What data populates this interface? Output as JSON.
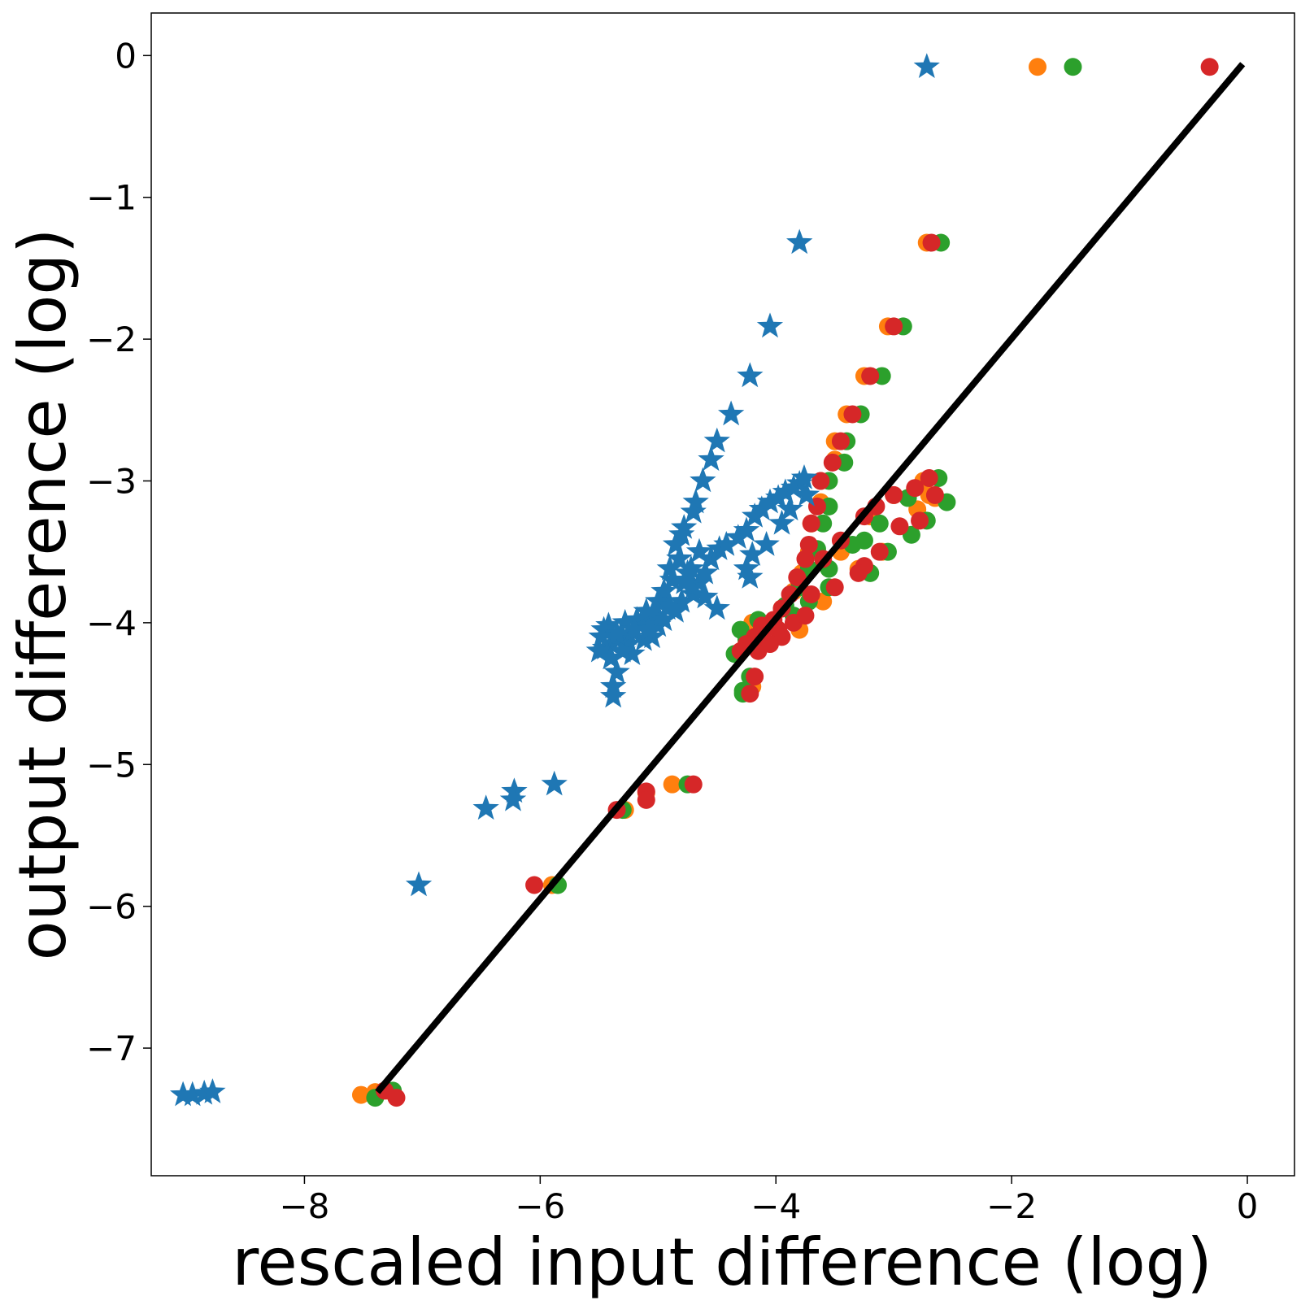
{
  "chart_data": {
    "type": "scatter",
    "title": "",
    "xlabel": "rescaled input difference (log)",
    "ylabel": "output difference (log)",
    "xlim": [
      -9.3,
      0.4
    ],
    "ylim": [
      -7.9,
      0.3
    ],
    "xticks": [
      -8,
      -6,
      -4,
      -2,
      0
    ],
    "yticks": [
      0,
      -1,
      -2,
      -3,
      -4,
      -5,
      -6,
      -7
    ],
    "xtick_labels": [
      "−8",
      "−6",
      "−4",
      "−2",
      "0"
    ],
    "ytick_labels": [
      "0",
      "−1",
      "−2",
      "−3",
      "−4",
      "−5",
      "−6",
      "−7"
    ],
    "grid": false,
    "line": {
      "name": "reference line",
      "color": "#000000",
      "x": [
        -7.38,
        -0.04
      ],
      "y": [
        -7.31,
        -0.06
      ]
    },
    "series": [
      {
        "name": "stars",
        "marker": "star",
        "color": "#1f77b4",
        "points": [
          [
            -2.72,
            -0.08
          ],
          [
            -3.8,
            -1.32
          ],
          [
            -4.05,
            -1.91
          ],
          [
            -4.22,
            -2.26
          ],
          [
            -4.38,
            -2.53
          ],
          [
            -4.5,
            -2.72
          ],
          [
            -4.55,
            -2.85
          ],
          [
            -4.62,
            -3.0
          ],
          [
            -4.68,
            -3.15
          ],
          [
            -4.7,
            -3.22
          ],
          [
            -4.78,
            -3.33
          ],
          [
            -4.8,
            -3.38
          ],
          [
            -4.85,
            -3.45
          ],
          [
            -4.82,
            -3.55
          ],
          [
            -4.9,
            -3.62
          ],
          [
            -4.88,
            -3.7
          ],
          [
            -4.95,
            -3.78
          ],
          [
            -5.0,
            -3.85
          ],
          [
            -4.92,
            -3.9
          ],
          [
            -5.05,
            -3.95
          ],
          [
            -5.1,
            -3.98
          ],
          [
            -5.15,
            -4.02
          ],
          [
            -5.2,
            -4.05
          ],
          [
            -5.25,
            -4.08
          ],
          [
            -5.3,
            -4.1
          ],
          [
            -5.35,
            -4.12
          ],
          [
            -5.4,
            -4.15
          ],
          [
            -5.45,
            -4.18
          ],
          [
            -5.5,
            -4.2
          ],
          [
            -5.4,
            -4.25
          ],
          [
            -5.35,
            -4.35
          ],
          [
            -5.38,
            -4.45
          ],
          [
            -5.38,
            -4.52
          ],
          [
            -5.42,
            -4.02
          ],
          [
            -5.28,
            -4.0
          ],
          [
            -5.18,
            -3.98
          ],
          [
            -5.1,
            -3.92
          ],
          [
            -5.0,
            -3.95
          ],
          [
            -4.9,
            -3.88
          ],
          [
            -4.8,
            -3.85
          ],
          [
            -4.7,
            -3.8
          ],
          [
            -4.65,
            -3.72
          ],
          [
            -4.6,
            -3.65
          ],
          [
            -4.55,
            -3.55
          ],
          [
            -4.48,
            -3.48
          ],
          [
            -4.42,
            -3.45
          ],
          [
            -4.32,
            -3.4
          ],
          [
            -4.25,
            -3.35
          ],
          [
            -4.18,
            -3.25
          ],
          [
            -4.12,
            -3.2
          ],
          [
            -4.05,
            -3.15
          ],
          [
            -3.98,
            -3.12
          ],
          [
            -3.92,
            -3.08
          ],
          [
            -3.85,
            -3.05
          ],
          [
            -3.8,
            -3.02
          ],
          [
            -3.76,
            -2.98
          ],
          [
            -3.74,
            -3.1
          ],
          [
            -3.88,
            -3.2
          ],
          [
            -3.95,
            -3.3
          ],
          [
            -4.08,
            -3.45
          ],
          [
            -4.2,
            -3.52
          ],
          [
            -4.25,
            -3.62
          ],
          [
            -4.22,
            -3.68
          ],
          [
            -4.5,
            -3.9
          ],
          [
            -4.6,
            -3.82
          ],
          [
            -4.7,
            -3.75
          ],
          [
            -4.75,
            -3.65
          ],
          [
            -4.85,
            -3.92
          ],
          [
            -5.05,
            -4.1
          ],
          [
            -5.25,
            -4.15
          ],
          [
            -5.12,
            -4.12
          ],
          [
            -5.22,
            -4.22
          ],
          [
            -5.3,
            -4.2
          ],
          [
            -5.2,
            -4.05
          ],
          [
            -5.46,
            -4.05
          ],
          [
            -5.35,
            -4.08
          ],
          [
            -5.48,
            -4.1
          ],
          [
            -5.0,
            -4.02
          ],
          [
            -4.95,
            -3.98
          ],
          [
            -5.08,
            -4.05
          ],
          [
            -4.78,
            -3.72
          ],
          [
            -4.72,
            -3.62
          ],
          [
            -4.65,
            -3.5
          ],
          [
            -5.88,
            -5.14
          ],
          [
            -6.22,
            -5.19
          ],
          [
            -6.23,
            -5.25
          ],
          [
            -6.46,
            -5.31
          ],
          [
            -7.03,
            -5.85
          ],
          [
            -9.03,
            -7.33
          ],
          [
            -8.95,
            -7.33
          ],
          [
            -8.85,
            -7.32
          ],
          [
            -8.78,
            -7.31
          ]
        ]
      },
      {
        "name": "orange",
        "marker": "circle",
        "color": "#ff7f0e",
        "points": [
          [
            -1.78,
            -0.08
          ],
          [
            -2.72,
            -1.32
          ],
          [
            -3.05,
            -1.91
          ],
          [
            -3.25,
            -2.26
          ],
          [
            -3.4,
            -2.53
          ],
          [
            -3.5,
            -2.72
          ],
          [
            -3.5,
            -2.85
          ],
          [
            -3.62,
            -3.0
          ],
          [
            -3.62,
            -3.15
          ],
          [
            -3.7,
            -3.3
          ],
          [
            -3.72,
            -3.5
          ],
          [
            -3.78,
            -3.65
          ],
          [
            -3.85,
            -3.78
          ],
          [
            -3.95,
            -3.9
          ],
          [
            -4.05,
            -4.02
          ],
          [
            -4.15,
            -4.1
          ],
          [
            -4.22,
            -4.15
          ],
          [
            -3.8,
            -4.05
          ],
          [
            -3.6,
            -3.85
          ],
          [
            -3.45,
            -3.5
          ],
          [
            -3.2,
            -3.25
          ],
          [
            -3.0,
            -3.1
          ],
          [
            -2.75,
            -3.0
          ],
          [
            -2.7,
            -3.1
          ],
          [
            -2.65,
            -3.12
          ],
          [
            -2.8,
            -3.2
          ],
          [
            -3.1,
            -3.5
          ],
          [
            -3.3,
            -3.62
          ],
          [
            -4.2,
            -4.0
          ],
          [
            -4.2,
            -4.45
          ],
          [
            -4.88,
            -5.14
          ],
          [
            -5.1,
            -5.2
          ],
          [
            -5.28,
            -5.32
          ],
          [
            -5.9,
            -5.85
          ],
          [
            -7.52,
            -7.33
          ],
          [
            -7.4,
            -7.31
          ],
          [
            -7.3,
            -7.3
          ]
        ]
      },
      {
        "name": "green",
        "marker": "circle",
        "color": "#2ca02c",
        "points": [
          [
            -1.48,
            -0.08
          ],
          [
            -2.6,
            -1.32
          ],
          [
            -2.92,
            -1.91
          ],
          [
            -3.1,
            -2.26
          ],
          [
            -3.28,
            -2.53
          ],
          [
            -3.4,
            -2.72
          ],
          [
            -3.42,
            -2.87
          ],
          [
            -3.55,
            -3.0
          ],
          [
            -3.55,
            -3.18
          ],
          [
            -3.6,
            -3.3
          ],
          [
            -3.65,
            -3.48
          ],
          [
            -3.72,
            -3.62
          ],
          [
            -3.8,
            -3.75
          ],
          [
            -3.92,
            -3.88
          ],
          [
            -4.02,
            -4.0
          ],
          [
            -4.12,
            -4.05
          ],
          [
            -4.25,
            -4.12
          ],
          [
            -4.35,
            -4.22
          ],
          [
            -4.3,
            -4.05
          ],
          [
            -4.15,
            -3.98
          ],
          [
            -3.72,
            -3.85
          ],
          [
            -3.55,
            -3.62
          ],
          [
            -3.35,
            -3.45
          ],
          [
            -3.12,
            -3.3
          ],
          [
            -2.88,
            -3.12
          ],
          [
            -2.62,
            -2.98
          ],
          [
            -2.55,
            -3.15
          ],
          [
            -2.72,
            -3.28
          ],
          [
            -2.85,
            -3.38
          ],
          [
            -3.05,
            -3.5
          ],
          [
            -3.2,
            -3.65
          ],
          [
            -3.25,
            -3.42
          ],
          [
            -3.55,
            -3.75
          ],
          [
            -3.85,
            -3.95
          ],
          [
            -4.28,
            -4.48
          ],
          [
            -4.22,
            -4.38
          ],
          [
            -4.28,
            -4.5
          ],
          [
            -4.75,
            -5.14
          ],
          [
            -5.3,
            -5.32
          ],
          [
            -5.85,
            -5.85
          ],
          [
            -7.4,
            -7.35
          ],
          [
            -7.25,
            -7.3
          ]
        ]
      },
      {
        "name": "red",
        "marker": "circle",
        "color": "#d62728",
        "points": [
          [
            -0.32,
            -0.08
          ],
          [
            -2.68,
            -1.32
          ],
          [
            -3.0,
            -1.91
          ],
          [
            -3.2,
            -2.26
          ],
          [
            -3.35,
            -2.53
          ],
          [
            -3.45,
            -2.72
          ],
          [
            -3.52,
            -2.87
          ],
          [
            -3.62,
            -3.0
          ],
          [
            -3.65,
            -3.18
          ],
          [
            -3.7,
            -3.3
          ],
          [
            -3.72,
            -3.45
          ],
          [
            -3.75,
            -3.55
          ],
          [
            -3.82,
            -3.68
          ],
          [
            -3.88,
            -3.8
          ],
          [
            -3.95,
            -3.9
          ],
          [
            -4.02,
            -3.98
          ],
          [
            -4.1,
            -4.05
          ],
          [
            -4.18,
            -4.1
          ],
          [
            -4.25,
            -4.15
          ],
          [
            -4.3,
            -4.2
          ],
          [
            -4.12,
            -4.02
          ],
          [
            -3.98,
            -4.05
          ],
          [
            -3.85,
            -4.0
          ],
          [
            -3.75,
            -3.95
          ],
          [
            -3.7,
            -3.8
          ],
          [
            -3.6,
            -3.55
          ],
          [
            -3.45,
            -3.42
          ],
          [
            -3.25,
            -3.25
          ],
          [
            -3.15,
            -3.18
          ],
          [
            -3.0,
            -3.1
          ],
          [
            -2.82,
            -3.05
          ],
          [
            -2.7,
            -2.98
          ],
          [
            -2.65,
            -3.1
          ],
          [
            -2.78,
            -3.28
          ],
          [
            -2.95,
            -3.32
          ],
          [
            -3.12,
            -3.5
          ],
          [
            -3.25,
            -3.6
          ],
          [
            -3.3,
            -3.65
          ],
          [
            -3.5,
            -3.75
          ],
          [
            -3.95,
            -4.1
          ],
          [
            -4.15,
            -4.2
          ],
          [
            -4.05,
            -4.15
          ],
          [
            -4.18,
            -4.38
          ],
          [
            -4.22,
            -4.5
          ],
          [
            -4.7,
            -5.14
          ],
          [
            -5.1,
            -5.19
          ],
          [
            -5.1,
            -5.25
          ],
          [
            -5.35,
            -5.32
          ],
          [
            -6.05,
            -5.85
          ],
          [
            -7.32,
            -7.3
          ],
          [
            -7.22,
            -7.35
          ]
        ]
      }
    ]
  }
}
